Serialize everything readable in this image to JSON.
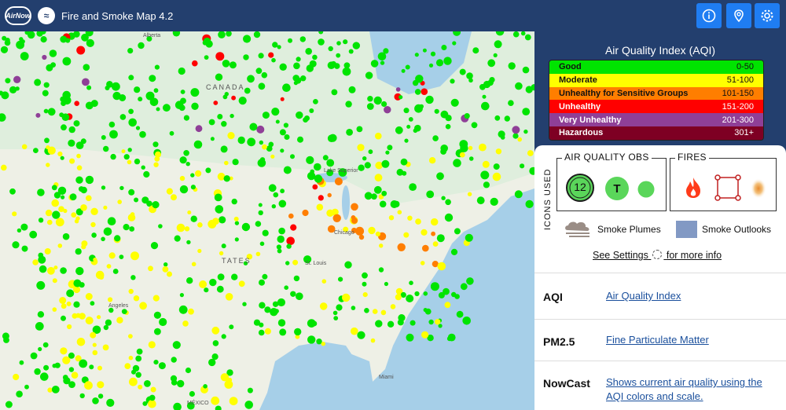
{
  "header": {
    "logo_text": "AirNow",
    "title": "Fire and Smoke Map 4.2",
    "buttons": [
      {
        "name": "info",
        "icon": "info-icon"
      },
      {
        "name": "location",
        "icon": "location-pin-icon"
      },
      {
        "name": "settings",
        "icon": "gear-icon"
      }
    ]
  },
  "map": {
    "labels": {
      "canada": "CANADA",
      "states": "TATES",
      "mexico": "MÉXICO",
      "lake_superior": "Lake Superior",
      "alberta": "Alberta",
      "chicago": "Chicago",
      "st_louis": "St. Louis",
      "angeles": "Angeles",
      "miami": "Miami"
    }
  },
  "aqi": {
    "title": "Air Quality Index (AQI)",
    "levels": [
      {
        "label": "Good",
        "range": "0-50",
        "color": "#00e400",
        "text": "#111"
      },
      {
        "label": "Moderate",
        "range": "51-100",
        "color": "#ffff00",
        "text": "#111"
      },
      {
        "label": "Unhealthy for Sensitive Groups",
        "range": "101-150",
        "color": "#ff7e00",
        "text": "#111"
      },
      {
        "label": "Unhealthy",
        "range": "151-200",
        "color": "#ff0000",
        "text": "#fff"
      },
      {
        "label": "Very Unhealthy",
        "range": "201-300",
        "color": "#8f3f97",
        "text": "#fff"
      },
      {
        "label": "Hazardous",
        "range": "301+",
        "color": "#7e0023",
        "text": "#fff"
      }
    ]
  },
  "icons_used": {
    "label": "ICONS USED",
    "air_quality_obs": {
      "label": "AIR QUALITY OBS",
      "monitor_value": "12",
      "temp_label": "T"
    },
    "fires": {
      "label": "FIRES"
    },
    "smoke_plumes": "Smoke Plumes",
    "smoke_outlooks": "Smoke Outlooks",
    "settings_prefix": "See Settings",
    "settings_suffix": "for more info"
  },
  "definitions": [
    {
      "term": "AQI",
      "desc": "Air Quality Index"
    },
    {
      "term": "PM2.5",
      "desc": "Fine Particulate Matter"
    },
    {
      "term": "NowCast",
      "desc": "Shows current air quality using the AQI colors and scale."
    }
  ]
}
